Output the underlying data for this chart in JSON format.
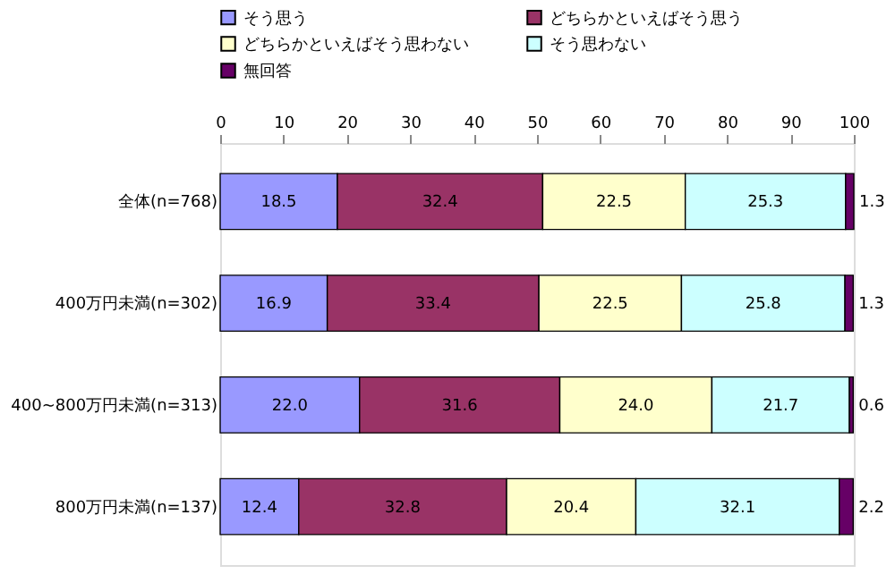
{
  "chart_data": {
    "type": "bar",
    "orientation": "horizontal",
    "stacked": true,
    "categories": [
      "全体(n=768)",
      "400万円未満(n=302)",
      "400~800万円未満(n=313)",
      "800万円未満(n=137)"
    ],
    "series": [
      {
        "name": "そう思う",
        "color": "#9999ff",
        "values": [
          18.5,
          16.9,
          22.0,
          12.4
        ],
        "value_labels": [
          "18.5",
          "16.9",
          "22.0",
          "12.4"
        ]
      },
      {
        "name": "どちらかといえばそう思う",
        "color": "#993366",
        "values": [
          32.4,
          33.4,
          31.6,
          32.8
        ],
        "value_labels": [
          "32.4",
          "33.4",
          "31.6",
          "32.8"
        ]
      },
      {
        "name": "どちらかといえばそう思わない",
        "color": "#ffffcc",
        "values": [
          22.5,
          22.5,
          24.0,
          20.4
        ],
        "value_labels": [
          "22.5",
          "22.5",
          "24.0",
          "20.4"
        ]
      },
      {
        "name": "そう思わない",
        "color": "#ccffff",
        "values": [
          25.3,
          25.8,
          21.7,
          32.1
        ],
        "value_labels": [
          "25.3",
          "25.8",
          "21.7",
          "32.1"
        ]
      },
      {
        "name": "無回答",
        "color": "#660066",
        "values": [
          1.3,
          1.3,
          0.6,
          2.2
        ],
        "value_labels": [
          "1.3",
          "1.3",
          "0.6",
          "2.2"
        ]
      }
    ],
    "xlim": [
      0,
      100
    ],
    "xticks": [
      0,
      10,
      20,
      30,
      40,
      50,
      60,
      70,
      80,
      90,
      100
    ],
    "legend": "top",
    "grid": false
  }
}
